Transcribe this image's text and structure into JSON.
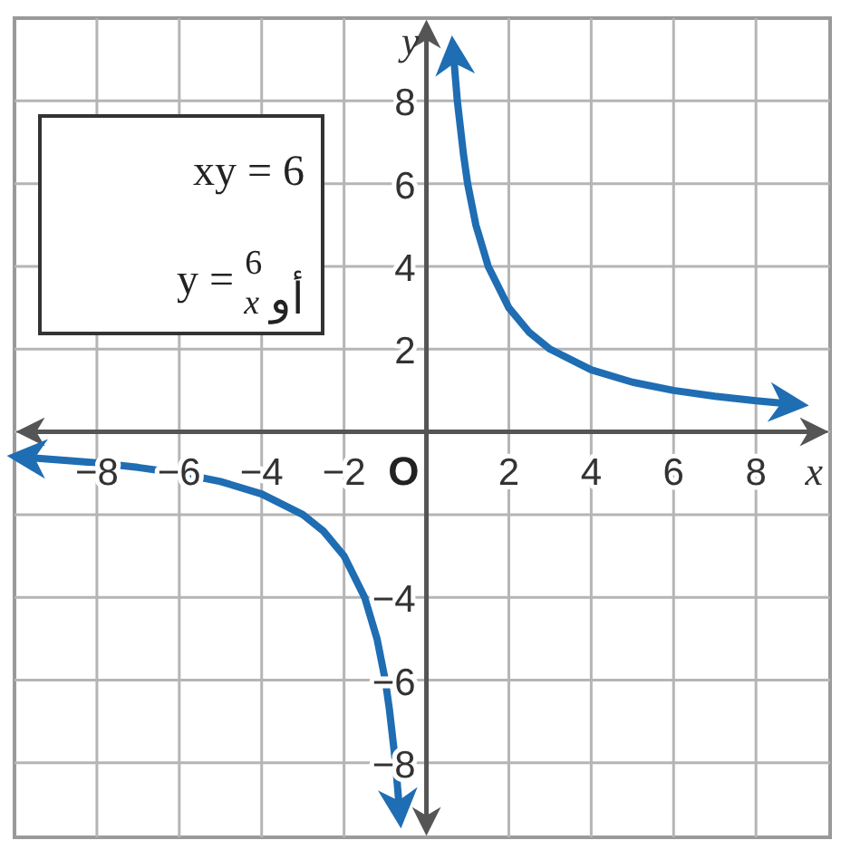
{
  "chart_data": {
    "type": "line",
    "xlabel": "x",
    "ylabel": "y",
    "annotations": [
      "xy = 6",
      "y = $^{6}$$_{x}$ أو",
      "O"
    ],
    "xlim": [
      -10,
      9.8
    ],
    "ylim": [
      -9.8,
      10
    ],
    "xticks": [
      {
        "value": -8,
        "label": "−8"
      },
      {
        "value": -6,
        "label": "−6"
      },
      {
        "value": -4,
        "label": "−4"
      },
      {
        "value": -2,
        "label": "−2"
      },
      2,
      4,
      6,
      8
    ],
    "yticks": [
      {
        "value": -8,
        "label": "−8"
      },
      {
        "value": -6,
        "label": "−6"
      },
      {
        "value": -4,
        "label": "−4"
      },
      {
        "value": -2,
        "label": null
      },
      {
        "value": 0,
        "label": null
      },
      2,
      4,
      6,
      8
    ],
    "grid": true,
    "series": [
      {
        "color": "#1f6db3",
        "x": [
          0.65,
          0.75,
          0.9,
          1,
          1.2,
          1.5,
          2,
          2.5,
          3,
          4,
          5,
          6,
          7,
          8,
          8.9
        ],
        "values": [
          9.2,
          8,
          6.7,
          6,
          5,
          4,
          3,
          2.4,
          2,
          1.5,
          1.2,
          1,
          0.86,
          0.75,
          0.67
        ]
      },
      {
        "color": "#1f6db3",
        "x": [
          -9.8,
          -9,
          -8,
          -7,
          -6,
          -5,
          -4,
          -3,
          -2.5,
          -2,
          -1.5,
          -1.2,
          -1,
          -0.9,
          -0.75,
          -0.65
        ],
        "values": [
          -0.61,
          -0.67,
          -0.75,
          -0.86,
          -1,
          -1.2,
          -1.5,
          -2,
          -2.4,
          -3,
          -4,
          -5,
          -6,
          -6.7,
          -8,
          -9.2
        ]
      }
    ]
  }
}
